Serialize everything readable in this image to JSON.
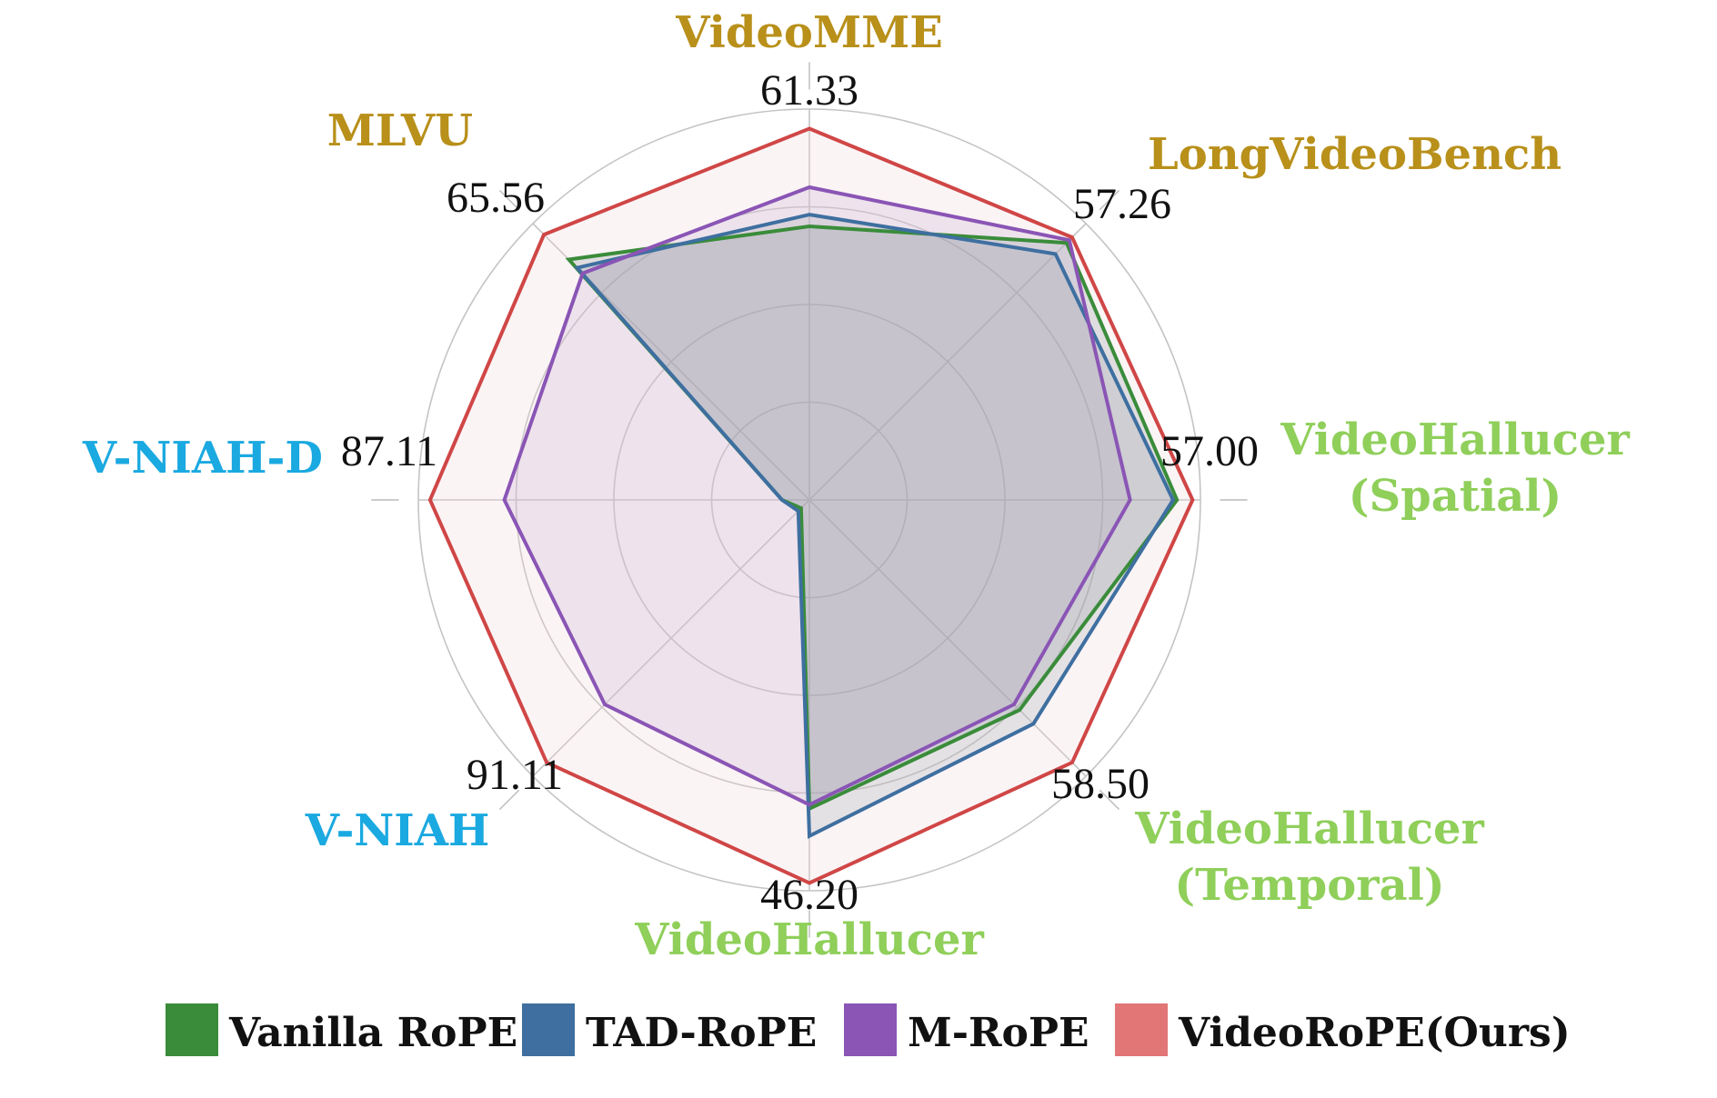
{
  "chart_data": {
    "type": "radar",
    "axes": [
      {
        "name": [
          "VideoMME"
        ],
        "max_label": "61.33",
        "color": "#B8901A"
      },
      {
        "name": [
          "LongVideoBench"
        ],
        "max_label": "57.26",
        "color": "#B8901A"
      },
      {
        "name": [
          "VideoHallucer",
          "(Spatial)"
        ],
        "max_label": "57.00",
        "color": "#8FCF5A"
      },
      {
        "name": [
          "VideoHallucer",
          "(Temporal)"
        ],
        "max_label": "58.50",
        "color": "#8FCF5A"
      },
      {
        "name": [
          "VideoHallucer"
        ],
        "max_label": "46.20",
        "color": "#8FCF5A"
      },
      {
        "name": [
          "V-NIAH"
        ],
        "max_label": "91.11",
        "color": "#1AA9E0"
      },
      {
        "name": [
          "V-NIAH-D"
        ],
        "max_label": "87.11",
        "color": "#1AA9E0"
      },
      {
        "name": [
          "MLVU"
        ],
        "max_label": "65.56",
        "color": "#B8901A"
      }
    ],
    "rmax": 1.0,
    "rings": [
      0.25,
      0.5,
      0.75,
      1.0
    ],
    "grid": true,
    "series": [
      {
        "name": "Vanilla RoPE",
        "color": "#3A8C3A",
        "fill": "rgba(140,150,160,0.25)",
        "values": [
          0.7,
          0.93,
          0.94,
          0.76,
          0.79,
          0.03,
          0.07,
          0.87
        ]
      },
      {
        "name": "TAD-RoPE",
        "color": "#3E6FA0",
        "fill": "rgba(140,150,160,0.20)",
        "values": [
          0.73,
          0.89,
          0.93,
          0.81,
          0.86,
          0.04,
          0.07,
          0.84
        ]
      },
      {
        "name": "M-RoPE",
        "color": "#8A55B5",
        "fill": "rgba(200,170,210,0.25)",
        "values": [
          0.8,
          0.94,
          0.82,
          0.74,
          0.78,
          0.74,
          0.78,
          0.82
        ]
      },
      {
        "name": "VideoRoPE(Ours)",
        "color": "#D04646",
        "fill": "rgba(240,210,215,0.25)",
        "values": [
          0.95,
          0.95,
          0.98,
          0.95,
          0.98,
          0.95,
          0.97,
          0.96
        ]
      }
    ],
    "legend_position": "bottom",
    "legend_swatch_colors": [
      "#3A8C3A",
      "#3E6FA0",
      "#8A55B5",
      "#E27575"
    ]
  }
}
